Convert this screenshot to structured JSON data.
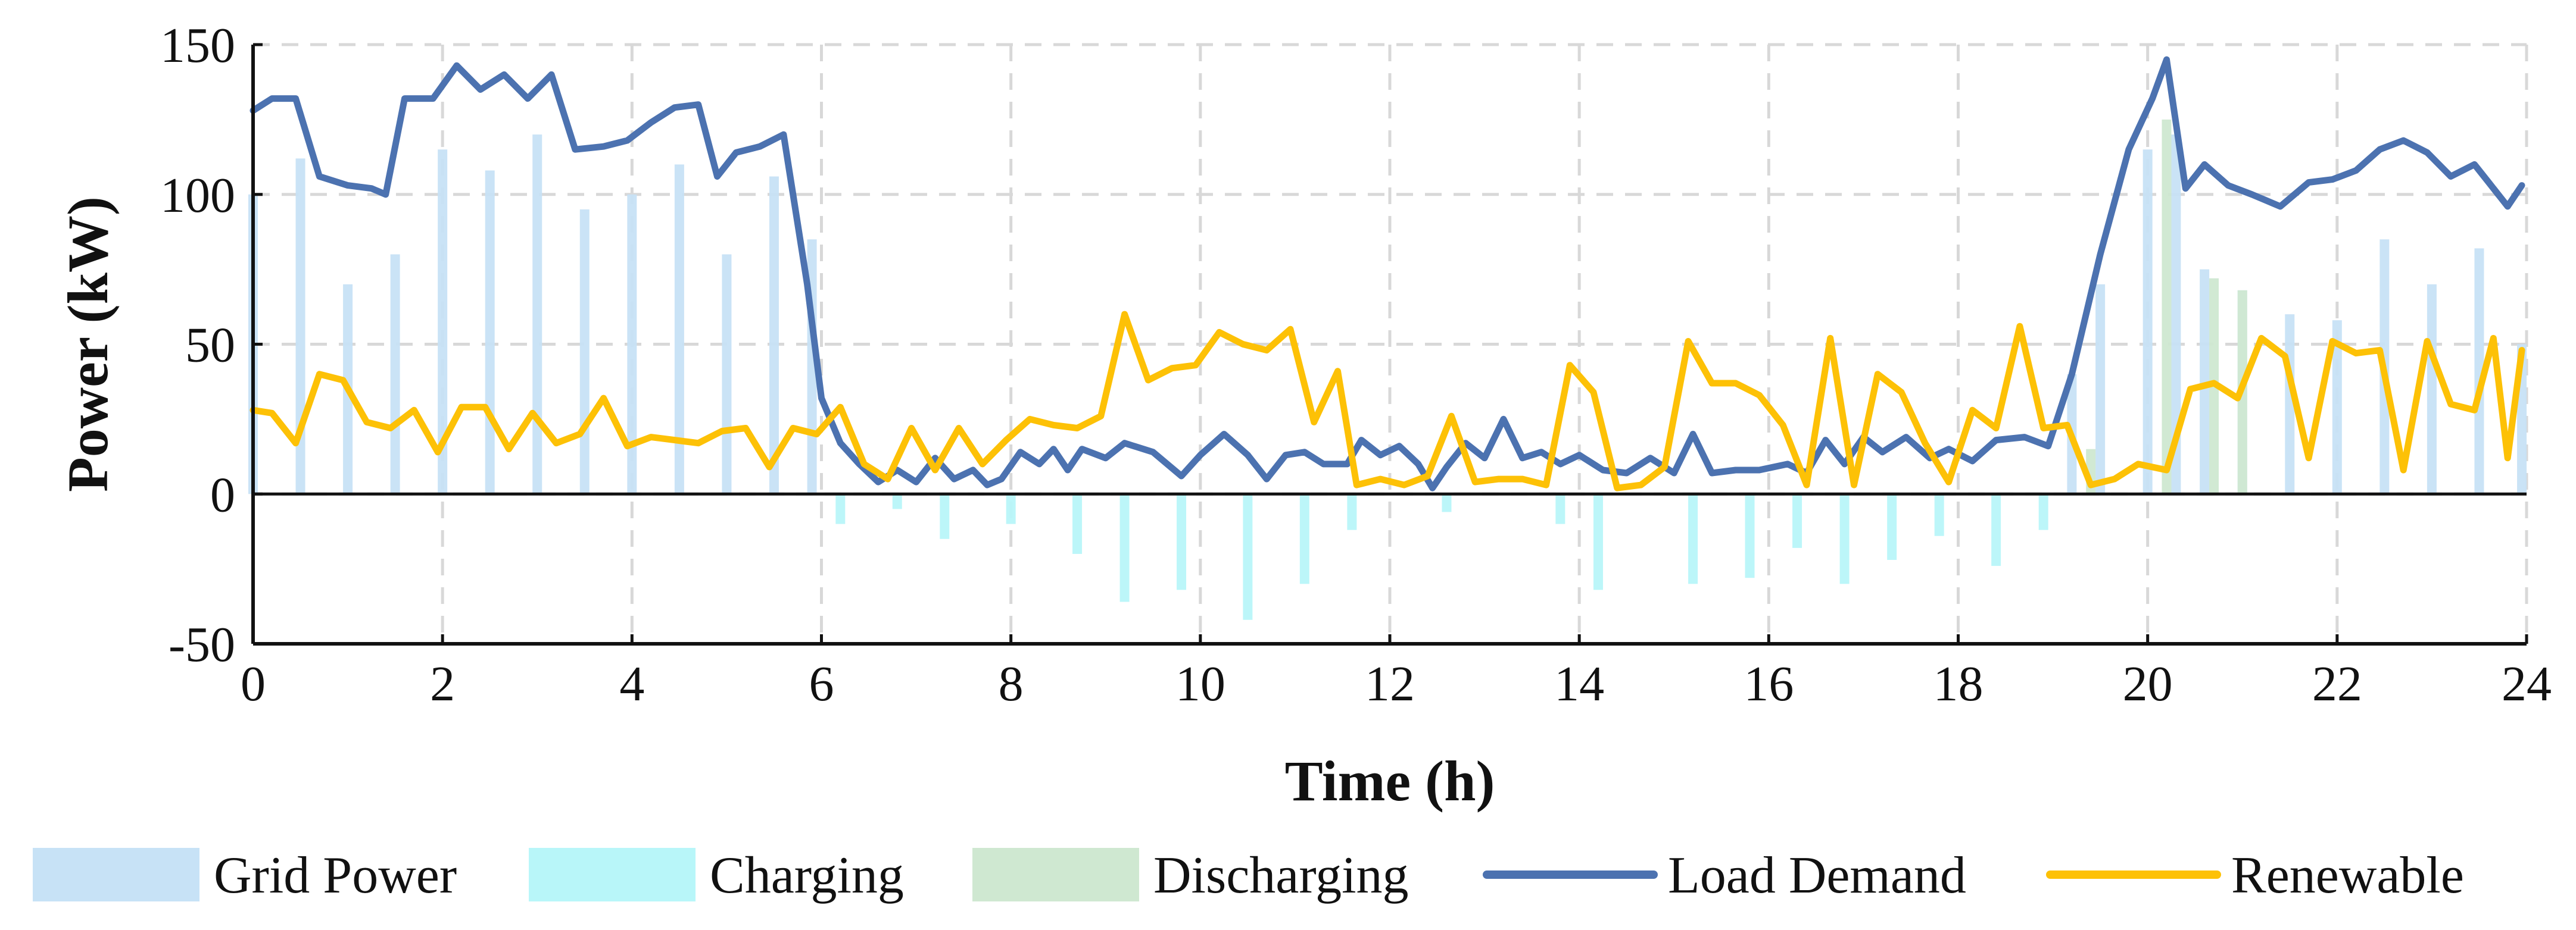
{
  "chart_data": {
    "type": "bar",
    "title": "",
    "xlabel": "Time (h)",
    "ylabel": "Power (kW)",
    "xlim": [
      0,
      24
    ],
    "ylim": [
      -50,
      150
    ],
    "xticks": [
      0,
      2,
      4,
      6,
      8,
      10,
      12,
      14,
      16,
      18,
      20,
      22,
      24
    ],
    "yticks": [
      -50,
      0,
      50,
      100,
      150
    ],
    "xtick_labels": [
      "0",
      "2",
      "4",
      "6",
      "8",
      "10",
      "12",
      "14",
      "16",
      "18",
      "20",
      "22",
      "24"
    ],
    "ytick_labels": [
      "-50",
      "0",
      "50",
      "100",
      "150"
    ],
    "grid": true,
    "legend_position": "bottom",
    "series": [
      {
        "name": "Grid Power",
        "kind": "bar",
        "color": "#c7e2f6",
        "points": [
          [
            0.0,
            100
          ],
          [
            0.5,
            112
          ],
          [
            1.0,
            70
          ],
          [
            1.5,
            80
          ],
          [
            2.0,
            115
          ],
          [
            2.5,
            108
          ],
          [
            3.0,
            120
          ],
          [
            3.5,
            95
          ],
          [
            4.0,
            100
          ],
          [
            4.5,
            110
          ],
          [
            5.0,
            80
          ],
          [
            5.5,
            106
          ],
          [
            5.9,
            85
          ],
          [
            19.2,
            40
          ],
          [
            19.5,
            70
          ],
          [
            20.0,
            115
          ],
          [
            20.3,
            120
          ],
          [
            20.6,
            75
          ],
          [
            21.0,
            68
          ],
          [
            21.5,
            60
          ],
          [
            22.0,
            58
          ],
          [
            22.5,
            85
          ],
          [
            23.0,
            70
          ],
          [
            23.5,
            82
          ],
          [
            23.95,
            50
          ]
        ]
      },
      {
        "name": "Charging",
        "kind": "bar",
        "color": "#b8f6f9",
        "points": [
          [
            6.2,
            -10
          ],
          [
            6.8,
            -5
          ],
          [
            7.3,
            -15
          ],
          [
            8.0,
            -10
          ],
          [
            8.7,
            -20
          ],
          [
            9.2,
            -36
          ],
          [
            9.8,
            -32
          ],
          [
            10.5,
            -42
          ],
          [
            11.1,
            -30
          ],
          [
            11.6,
            -12
          ],
          [
            12.6,
            -6
          ],
          [
            13.8,
            -10
          ],
          [
            14.2,
            -32
          ],
          [
            15.2,
            -30
          ],
          [
            15.8,
            -28
          ],
          [
            16.3,
            -18
          ],
          [
            16.8,
            -30
          ],
          [
            17.3,
            -22
          ],
          [
            17.8,
            -14
          ],
          [
            18.4,
            -24
          ],
          [
            18.9,
            -12
          ]
        ]
      },
      {
        "name": "Discharging",
        "kind": "bar",
        "color": "#cfe8d1",
        "points": [
          [
            19.4,
            15
          ],
          [
            20.2,
            125
          ],
          [
            20.7,
            72
          ],
          [
            21.0,
            68
          ]
        ]
      },
      {
        "name": "Load Demand",
        "kind": "line",
        "color": "#4c72b0",
        "points": [
          [
            0.0,
            128
          ],
          [
            0.2,
            132
          ],
          [
            0.45,
            132
          ],
          [
            0.7,
            106
          ],
          [
            1.0,
            103
          ],
          [
            1.25,
            102
          ],
          [
            1.4,
            100
          ],
          [
            1.6,
            132
          ],
          [
            1.9,
            132
          ],
          [
            2.15,
            143
          ],
          [
            2.4,
            135
          ],
          [
            2.65,
            140
          ],
          [
            2.9,
            132
          ],
          [
            3.15,
            140
          ],
          [
            3.4,
            115
          ],
          [
            3.7,
            116
          ],
          [
            3.95,
            118
          ],
          [
            4.2,
            124
          ],
          [
            4.45,
            129
          ],
          [
            4.7,
            130
          ],
          [
            4.9,
            106
          ],
          [
            5.1,
            114
          ],
          [
            5.35,
            116
          ],
          [
            5.6,
            120
          ],
          [
            5.85,
            70
          ],
          [
            6.0,
            32
          ],
          [
            6.2,
            17
          ],
          [
            6.4,
            10
          ],
          [
            6.6,
            4
          ],
          [
            6.8,
            8
          ],
          [
            7.0,
            4
          ],
          [
            7.2,
            12
          ],
          [
            7.4,
            5
          ],
          [
            7.6,
            8
          ],
          [
            7.75,
            3
          ],
          [
            7.9,
            5
          ],
          [
            8.1,
            14
          ],
          [
            8.3,
            10
          ],
          [
            8.45,
            15
          ],
          [
            8.6,
            8
          ],
          [
            8.75,
            15
          ],
          [
            9.0,
            12
          ],
          [
            9.2,
            17
          ],
          [
            9.5,
            14
          ],
          [
            9.8,
            6
          ],
          [
            10.0,
            13
          ],
          [
            10.25,
            20
          ],
          [
            10.5,
            13
          ],
          [
            10.7,
            5
          ],
          [
            10.9,
            13
          ],
          [
            11.1,
            14
          ],
          [
            11.3,
            10
          ],
          [
            11.55,
            10
          ],
          [
            11.7,
            18
          ],
          [
            11.9,
            13
          ],
          [
            12.1,
            16
          ],
          [
            12.3,
            10
          ],
          [
            12.45,
            2
          ],
          [
            12.6,
            9
          ],
          [
            12.8,
            17
          ],
          [
            13.0,
            12
          ],
          [
            13.2,
            25
          ],
          [
            13.4,
            12
          ],
          [
            13.6,
            14
          ],
          [
            13.8,
            10
          ],
          [
            14.0,
            13
          ],
          [
            14.25,
            8
          ],
          [
            14.5,
            7
          ],
          [
            14.75,
            12
          ],
          [
            15.0,
            7
          ],
          [
            15.2,
            20
          ],
          [
            15.4,
            7
          ],
          [
            15.65,
            8
          ],
          [
            15.9,
            8
          ],
          [
            16.2,
            10
          ],
          [
            16.4,
            7
          ],
          [
            16.6,
            18
          ],
          [
            16.8,
            10
          ],
          [
            17.0,
            19
          ],
          [
            17.2,
            14
          ],
          [
            17.45,
            19
          ],
          [
            17.7,
            12
          ],
          [
            17.9,
            15
          ],
          [
            18.15,
            11
          ],
          [
            18.4,
            18
          ],
          [
            18.7,
            19
          ],
          [
            18.95,
            16
          ],
          [
            19.2,
            40
          ],
          [
            19.5,
            80
          ],
          [
            19.8,
            115
          ],
          [
            20.05,
            132
          ],
          [
            20.2,
            145
          ],
          [
            20.4,
            102
          ],
          [
            20.6,
            110
          ],
          [
            20.85,
            103
          ],
          [
            21.1,
            100
          ],
          [
            21.4,
            96
          ],
          [
            21.7,
            104
          ],
          [
            21.95,
            105
          ],
          [
            22.2,
            108
          ],
          [
            22.45,
            115
          ],
          [
            22.7,
            118
          ],
          [
            22.95,
            114
          ],
          [
            23.2,
            106
          ],
          [
            23.45,
            110
          ],
          [
            23.6,
            104
          ],
          [
            23.8,
            96
          ],
          [
            23.95,
            103
          ]
        ]
      },
      {
        "name": "Renewable",
        "kind": "line",
        "color": "#fdc106",
        "points": [
          [
            0.0,
            28
          ],
          [
            0.2,
            27
          ],
          [
            0.45,
            17
          ],
          [
            0.7,
            40
          ],
          [
            0.95,
            38
          ],
          [
            1.2,
            24
          ],
          [
            1.45,
            22
          ],
          [
            1.7,
            28
          ],
          [
            1.95,
            14
          ],
          [
            2.2,
            29
          ],
          [
            2.45,
            29
          ],
          [
            2.7,
            15
          ],
          [
            2.95,
            27
          ],
          [
            3.2,
            17
          ],
          [
            3.45,
            20
          ],
          [
            3.7,
            32
          ],
          [
            3.95,
            16
          ],
          [
            4.2,
            19
          ],
          [
            4.45,
            18
          ],
          [
            4.7,
            17
          ],
          [
            4.95,
            21
          ],
          [
            5.2,
            22
          ],
          [
            5.45,
            9
          ],
          [
            5.7,
            22
          ],
          [
            5.95,
            20
          ],
          [
            6.2,
            29
          ],
          [
            6.45,
            10
          ],
          [
            6.7,
            5
          ],
          [
            6.95,
            22
          ],
          [
            7.2,
            8
          ],
          [
            7.45,
            22
          ],
          [
            7.7,
            10
          ],
          [
            7.95,
            18
          ],
          [
            8.2,
            25
          ],
          [
            8.45,
            23
          ],
          [
            8.7,
            22
          ],
          [
            8.95,
            26
          ],
          [
            9.2,
            60
          ],
          [
            9.45,
            38
          ],
          [
            9.7,
            42
          ],
          [
            9.95,
            43
          ],
          [
            10.2,
            54
          ],
          [
            10.45,
            50
          ],
          [
            10.7,
            48
          ],
          [
            10.95,
            55
          ],
          [
            11.2,
            24
          ],
          [
            11.45,
            41
          ],
          [
            11.65,
            3
          ],
          [
            11.9,
            5
          ],
          [
            12.15,
            3
          ],
          [
            12.4,
            6
          ],
          [
            12.65,
            26
          ],
          [
            12.9,
            4
          ],
          [
            13.15,
            5
          ],
          [
            13.4,
            5
          ],
          [
            13.65,
            3
          ],
          [
            13.9,
            43
          ],
          [
            14.15,
            34
          ],
          [
            14.4,
            2
          ],
          [
            14.65,
            3
          ],
          [
            14.9,
            9
          ],
          [
            15.15,
            51
          ],
          [
            15.4,
            37
          ],
          [
            15.65,
            37
          ],
          [
            15.9,
            33
          ],
          [
            16.15,
            23
          ],
          [
            16.4,
            3
          ],
          [
            16.65,
            52
          ],
          [
            16.9,
            3
          ],
          [
            17.15,
            40
          ],
          [
            17.4,
            34
          ],
          [
            17.65,
            17
          ],
          [
            17.9,
            4
          ],
          [
            18.15,
            28
          ],
          [
            18.4,
            22
          ],
          [
            18.65,
            56
          ],
          [
            18.9,
            22
          ],
          [
            19.15,
            23
          ],
          [
            19.4,
            3
          ],
          [
            19.65,
            5
          ],
          [
            19.9,
            10
          ],
          [
            20.2,
            8
          ],
          [
            20.45,
            35
          ],
          [
            20.7,
            37
          ],
          [
            20.95,
            32
          ],
          [
            21.2,
            52
          ],
          [
            21.45,
            46
          ],
          [
            21.7,
            12
          ],
          [
            21.95,
            51
          ],
          [
            22.2,
            47
          ],
          [
            22.45,
            48
          ],
          [
            22.7,
            8
          ],
          [
            22.95,
            51
          ],
          [
            23.2,
            30
          ],
          [
            23.45,
            28
          ],
          [
            23.65,
            52
          ],
          [
            23.8,
            12
          ],
          [
            23.95,
            48
          ]
        ]
      }
    ],
    "legend": [
      {
        "label": "Grid Power",
        "kind": "patch",
        "color": "#c7e2f6"
      },
      {
        "label": "Charging",
        "kind": "patch",
        "color": "#b8f6f9"
      },
      {
        "label": "Discharging",
        "kind": "patch",
        "color": "#cfe8d1"
      },
      {
        "label": "Load Demand",
        "kind": "line",
        "color": "#4c72b0"
      },
      {
        "label": "Renewable",
        "kind": "line",
        "color": "#fdc106"
      }
    ]
  }
}
